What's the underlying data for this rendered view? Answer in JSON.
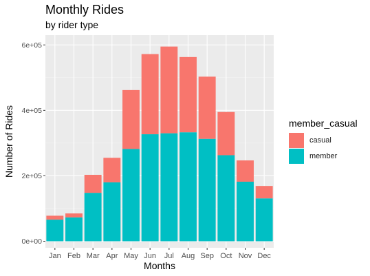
{
  "title": "Monthly Rides",
  "subtitle": "by rider type",
  "chart_data": {
    "type": "bar",
    "stacked": true,
    "title": "Monthly Rides",
    "subtitle": "by rider type",
    "xlabel": "Months",
    "ylabel": "Number of Rides",
    "categories": [
      "Jan",
      "Feb",
      "Mar",
      "Apr",
      "May",
      "Jun",
      "Jul",
      "Aug",
      "Sep",
      "Oct",
      "Nov",
      "Dec"
    ],
    "series": [
      {
        "name": "casual",
        "color": "#F8766D",
        "values": [
          12000,
          12000,
          55000,
          75000,
          180000,
          245000,
          265000,
          230000,
          190000,
          132000,
          65000,
          38000
        ]
      },
      {
        "name": "member",
        "color": "#00BFC4",
        "values": [
          66000,
          73000,
          148000,
          180000,
          282000,
          327000,
          330000,
          333000,
          313000,
          263000,
          182000,
          131000
        ]
      }
    ],
    "ylim": [
      -20000,
      630000
    ],
    "yticks": [
      0,
      200000,
      400000,
      600000
    ],
    "ytick_labels": [
      "0e+00",
      "2e+05",
      "4e+05",
      "6e+05"
    ],
    "legend": {
      "title": "member_casual",
      "position": "right"
    },
    "grid": true
  }
}
